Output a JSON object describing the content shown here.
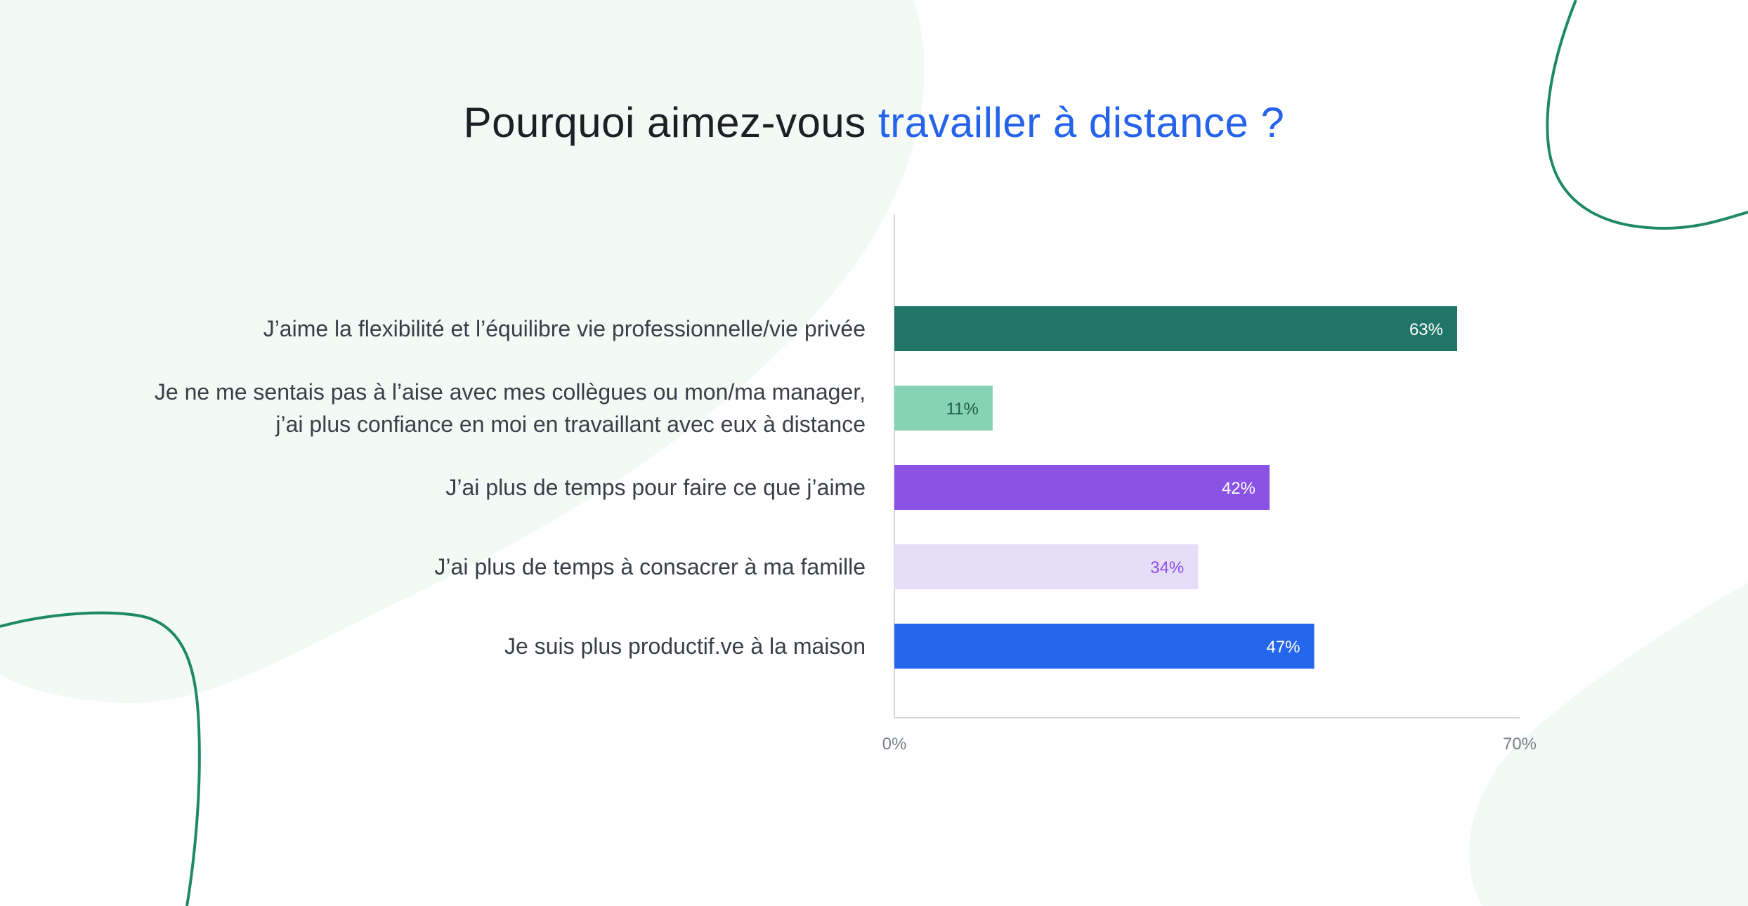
{
  "title": {
    "part1": "Pourquoi aimez-vous ",
    "part2": "travailler à distance ?"
  },
  "colors": {
    "title_accent": "#2563eb",
    "decor_line": "#1e8a64",
    "decor_blob": "#f3f9f5"
  },
  "chart_data": {
    "type": "bar",
    "orientation": "horizontal",
    "title": "Pourquoi aimez-vous travailler à distance ?",
    "categories": [
      [
        "J’aime la flexibilité et l’équilibre vie professionnelle/vie privée"
      ],
      [
        "Je ne me sentais pas à l’aise avec mes collègues ou mon/ma manager,",
        "j’ai plus confiance en moi en travaillant avec eux à distance"
      ],
      [
        "J’ai plus de temps pour faire ce que j’aime"
      ],
      [
        "J’ai plus de temps à consacrer à ma famille"
      ],
      [
        "Je suis plus productif.ve à la maison"
      ]
    ],
    "values": [
      63,
      11,
      42,
      34,
      47
    ],
    "value_labels": [
      "63%",
      "11%",
      "42%",
      "34%",
      "47%"
    ],
    "bar_colors": [
      "#217567",
      "#86d3b3",
      "#8b52e6",
      "#e6ddf8",
      "#2567ec"
    ],
    "label_colors": [
      "#ffffff",
      "#1d5c49",
      "#ffffff",
      "#8b52e6",
      "#ffffff"
    ],
    "xlim": [
      0,
      70
    ],
    "x_tick_labels": [
      "0%",
      "70%"
    ],
    "xlabel": "",
    "ylabel": "",
    "grid": false,
    "legend": "none"
  }
}
